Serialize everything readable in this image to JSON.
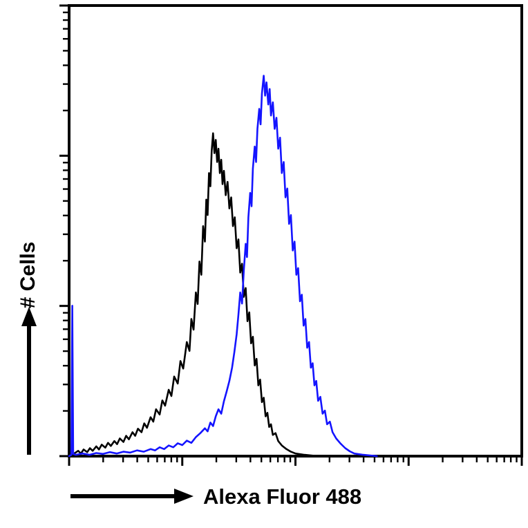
{
  "chart_data": {
    "type": "histogram-overlay",
    "subtype": "flow-cytometry",
    "title": "",
    "xlabel": "Alexa Fluor 488",
    "ylabel": "# Cells",
    "legend": "none",
    "grid": false,
    "axis_color": "#000000",
    "x_axis": {
      "scale": "log",
      "decades": 4,
      "tick_labels_visible": false
    },
    "y_axis": {
      "scale": "log",
      "decades": 3,
      "tick_labels_visible": false
    },
    "series": [
      {
        "name": "black-curve",
        "color": "#000000",
        "points": [
          [
            0,
            0
          ],
          [
            1,
            0.5
          ],
          [
            2,
            1.2
          ],
          [
            2.6,
            0.6
          ],
          [
            3.2,
            1.5
          ],
          [
            4,
            0.9
          ],
          [
            4.6,
            1.8
          ],
          [
            5.2,
            1.2
          ],
          [
            6,
            2.2
          ],
          [
            6.6,
            1.5
          ],
          [
            7.2,
            2.6
          ],
          [
            8,
            1.9
          ],
          [
            8.6,
            3
          ],
          [
            9.2,
            2.3
          ],
          [
            10,
            3.4
          ],
          [
            10.6,
            2.7
          ],
          [
            11.2,
            4
          ],
          [
            12,
            3.2
          ],
          [
            12.6,
            4.6
          ],
          [
            13.2,
            3.8
          ],
          [
            14,
            5.4
          ],
          [
            14.6,
            4.6
          ],
          [
            15.2,
            6.2
          ],
          [
            16,
            5.4
          ],
          [
            16.6,
            7.4
          ],
          [
            17.2,
            6.4
          ],
          [
            18,
            8.8
          ],
          [
            18.6,
            7.8
          ],
          [
            19.2,
            10.6
          ],
          [
            20,
            9.4
          ],
          [
            20.6,
            12.6
          ],
          [
            21.2,
            11.4
          ],
          [
            22,
            15
          ],
          [
            22.6,
            13.6
          ],
          [
            23.2,
            18
          ],
          [
            24,
            16.4
          ],
          [
            24.6,
            21.5
          ],
          [
            25.2,
            19.8
          ],
          [
            26,
            25.8
          ],
          [
            26.6,
            23.8
          ],
          [
            27,
            31
          ],
          [
            27.5,
            28.6
          ],
          [
            28,
            37
          ],
          [
            28.4,
            34.4
          ],
          [
            28.8,
            44
          ],
          [
            29.2,
            41
          ],
          [
            29.6,
            52
          ],
          [
            30,
            48.5
          ],
          [
            30.3,
            58
          ],
          [
            30.6,
            54.5
          ],
          [
            30.9,
            64
          ],
          [
            31.2,
            61
          ],
          [
            31.5,
            69
          ],
          [
            31.8,
            73
          ],
          [
            32.1,
            68.5
          ],
          [
            32.4,
            71.5
          ],
          [
            32.7,
            66.5
          ],
          [
            33,
            69.5
          ],
          [
            33.3,
            64
          ],
          [
            33.6,
            67
          ],
          [
            33.9,
            61.5
          ],
          [
            34.2,
            64.5
          ],
          [
            34.6,
            59
          ],
          [
            35,
            62
          ],
          [
            35.4,
            56
          ],
          [
            35.8,
            58.5
          ],
          [
            36.2,
            52
          ],
          [
            36.6,
            54
          ],
          [
            37,
            47
          ],
          [
            37.4,
            49
          ],
          [
            37.8,
            41.5
          ],
          [
            38.2,
            43.5
          ],
          [
            38.6,
            36
          ],
          [
            39,
            38
          ],
          [
            39.4,
            30.5
          ],
          [
            39.8,
            32.5
          ],
          [
            40.2,
            25.5
          ],
          [
            40.6,
            27
          ],
          [
            41,
            20.5
          ],
          [
            41.4,
            22
          ],
          [
            41.8,
            16
          ],
          [
            42.2,
            17.3
          ],
          [
            42.6,
            12.2
          ],
          [
            43,
            13.2
          ],
          [
            43.4,
            9
          ],
          [
            43.8,
            9.8
          ],
          [
            44.2,
            6.6
          ],
          [
            44.6,
            7.2
          ],
          [
            45,
            4.8
          ],
          [
            45.6,
            5.2
          ],
          [
            46.2,
            3.4
          ],
          [
            47,
            2.4
          ],
          [
            48,
            1.6
          ],
          [
            49,
            1
          ],
          [
            50,
            0.6
          ],
          [
            52,
            0.3
          ],
          [
            55,
            0
          ]
        ]
      },
      {
        "name": "blue-curve",
        "color": "#1414ff",
        "points": [
          [
            0,
            0
          ],
          [
            0.5,
            0.3
          ],
          [
            0.7,
            34
          ],
          [
            0.9,
            0.5
          ],
          [
            1.5,
            0.3
          ],
          [
            3,
            0.6
          ],
          [
            4.5,
            0.3
          ],
          [
            6,
            0.7
          ],
          [
            7.5,
            0.5
          ],
          [
            9,
            0.9
          ],
          [
            10.5,
            0.6
          ],
          [
            12,
            1
          ],
          [
            13.5,
            0.8
          ],
          [
            15,
            1.3
          ],
          [
            16.5,
            1
          ],
          [
            18,
            1.6
          ],
          [
            19,
            1.3
          ],
          [
            20,
            2
          ],
          [
            21,
            1.6
          ],
          [
            22,
            2.4
          ],
          [
            23,
            2
          ],
          [
            24,
            2.9
          ],
          [
            25,
            2.5
          ],
          [
            26,
            3.5
          ],
          [
            27,
            3
          ],
          [
            28,
            4.3
          ],
          [
            29,
            5.2
          ],
          [
            30,
            6.3
          ],
          [
            30.6,
            5.6
          ],
          [
            31.2,
            7.6
          ],
          [
            31.8,
            6.8
          ],
          [
            32.4,
            9
          ],
          [
            33,
            10.6
          ],
          [
            33.6,
            9.6
          ],
          [
            34.2,
            12.4
          ],
          [
            34.8,
            14.6
          ],
          [
            35.4,
            17
          ],
          [
            36,
            20
          ],
          [
            36.5,
            23.5
          ],
          [
            37,
            27.5
          ],
          [
            37.4,
            32
          ],
          [
            37.8,
            37
          ],
          [
            38.2,
            34.5
          ],
          [
            38.6,
            42
          ],
          [
            39,
            48
          ],
          [
            39.3,
            45
          ],
          [
            39.6,
            54
          ],
          [
            40,
            59.5
          ],
          [
            40.3,
            56.5
          ],
          [
            40.6,
            65
          ],
          [
            41,
            70
          ],
          [
            41.3,
            66.5
          ],
          [
            41.6,
            74
          ],
          [
            42,
            78.5
          ],
          [
            42.3,
            75
          ],
          [
            42.6,
            82
          ],
          [
            43,
            86
          ],
          [
            43.3,
            81.5
          ],
          [
            43.6,
            84.5
          ],
          [
            44,
            79.5
          ],
          [
            44.3,
            83
          ],
          [
            44.6,
            77
          ],
          [
            45,
            80
          ],
          [
            45.4,
            74
          ],
          [
            45.8,
            76.5
          ],
          [
            46.2,
            69.5
          ],
          [
            46.6,
            72
          ],
          [
            47,
            64
          ],
          [
            47.4,
            66.5
          ],
          [
            47.8,
            58.5
          ],
          [
            48.2,
            60.5
          ],
          [
            48.6,
            52.5
          ],
          [
            49,
            54.5
          ],
          [
            49.4,
            46.5
          ],
          [
            49.8,
            48.5
          ],
          [
            50.2,
            41
          ],
          [
            50.6,
            42.5
          ],
          [
            51,
            35
          ],
          [
            51.4,
            36.5
          ],
          [
            51.8,
            29.5
          ],
          [
            52.2,
            31
          ],
          [
            52.6,
            24.5
          ],
          [
            53,
            25.8
          ],
          [
            53.4,
            20
          ],
          [
            53.8,
            21
          ],
          [
            54.2,
            16
          ],
          [
            54.6,
            17
          ],
          [
            55,
            12.5
          ],
          [
            55.5,
            13.4
          ],
          [
            56,
            9.6
          ],
          [
            56.5,
            10.3
          ],
          [
            57,
            7.2
          ],
          [
            57.6,
            7.8
          ],
          [
            58.2,
            5.4
          ],
          [
            59,
            4
          ],
          [
            60,
            2.8
          ],
          [
            61,
            1.8
          ],
          [
            62,
            1.1
          ],
          [
            63,
            0.6
          ],
          [
            65,
            0.3
          ],
          [
            68,
            0
          ]
        ]
      }
    ]
  }
}
